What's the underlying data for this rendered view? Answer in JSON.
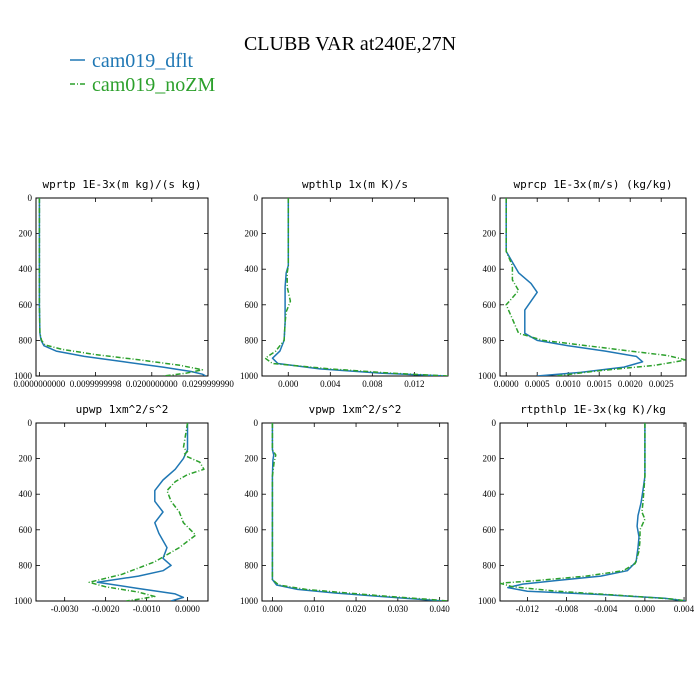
{
  "figure_title": "CLUBB VAR at240E,27N",
  "legend": [
    {
      "label": "cam019_dflt",
      "color": "#1f77b4",
      "dash": "solid"
    },
    {
      "label": "cam019_noZM",
      "color": "#2ca02c",
      "dash": "dashdot"
    }
  ],
  "chart_data": [
    {
      "type": "line",
      "title": "wprtp  1E-3x(m kg)/(s kg)",
      "xlim": [
        -0.0006,
        0.03
      ],
      "ylim": [
        1000,
        0
      ],
      "xticks": [
        0.0,
        0.0099999998,
        0.02,
        0.029999999
      ],
      "xtick_labels": [
        "0.0000000000",
        "0.0099999998",
        "0.0200000000",
        "0.0299999990"
      ],
      "yticks": [
        0,
        200,
        400,
        600,
        800,
        1000
      ],
      "ytick_labels": [
        "0",
        "200",
        "400",
        "600",
        "800",
        "1000"
      ],
      "series": [
        {
          "name": "cam019_dflt",
          "points": [
            [
              0.0,
              0
            ],
            [
              0.0,
              300
            ],
            [
              0.0,
              600
            ],
            [
              0.0001,
              760
            ],
            [
              0.0003,
              800
            ],
            [
              0.0008,
              830
            ],
            [
              0.003,
              860
            ],
            [
              0.008,
              890
            ],
            [
              0.015,
              920
            ],
            [
              0.022,
              950
            ],
            [
              0.027,
              975
            ],
            [
              0.029,
              990
            ],
            [
              0.0296,
              1000
            ]
          ]
        },
        {
          "name": "cam019_noZM",
          "points": [
            [
              0.0,
              0
            ],
            [
              0.0,
              300
            ],
            [
              0.0,
              600
            ],
            [
              0.0001,
              760
            ],
            [
              0.0004,
              800
            ],
            [
              0.001,
              825
            ],
            [
              0.004,
              850
            ],
            [
              0.01,
              880
            ],
            [
              0.018,
              910
            ],
            [
              0.025,
              940
            ],
            [
              0.029,
              965
            ],
            [
              0.026,
              985
            ],
            [
              0.022,
              1000
            ]
          ]
        }
      ]
    },
    {
      "type": "line",
      "title": "wpthlp  1x(m K)/s",
      "xlim": [
        -0.0025,
        0.0152
      ],
      "ylim": [
        1000,
        0
      ],
      "xticks": [
        0.0,
        0.004,
        0.008,
        0.012
      ],
      "xtick_labels": [
        "0.000",
        "0.004",
        "0.008",
        "0.012"
      ],
      "yticks": [
        0,
        200,
        400,
        600,
        800,
        1000
      ],
      "ytick_labels": [
        "0",
        "200",
        "400",
        "600",
        "800",
        "1000"
      ],
      "series": [
        {
          "name": "cam019_dflt",
          "points": [
            [
              0.0,
              0
            ],
            [
              0.0,
              200
            ],
            [
              0.0,
              380
            ],
            [
              -0.0002,
              420
            ],
            [
              -0.0003,
              500
            ],
            [
              -0.0003,
              600
            ],
            [
              -0.0003,
              700
            ],
            [
              -0.0004,
              800
            ],
            [
              -0.0008,
              860
            ],
            [
              -0.0015,
              900
            ],
            [
              -0.001,
              930
            ],
            [
              0.003,
              960
            ],
            [
              0.009,
              985
            ],
            [
              0.015,
              1000
            ]
          ]
        },
        {
          "name": "cam019_noZM",
          "points": [
            [
              0.0,
              0
            ],
            [
              0.0,
              200
            ],
            [
              0.0,
              380
            ],
            [
              -0.0001,
              420
            ],
            [
              -0.0001,
              500
            ],
            [
              0.0002,
              580
            ],
            [
              -0.0002,
              640
            ],
            [
              -0.0003,
              700
            ],
            [
              -0.0004,
              800
            ],
            [
              -0.0012,
              860
            ],
            [
              -0.0022,
              900
            ],
            [
              -0.0015,
              930
            ],
            [
              0.004,
              960
            ],
            [
              0.01,
              985
            ],
            [
              0.0152,
              1000
            ]
          ]
        }
      ]
    },
    {
      "type": "line",
      "title": "wprcp  1E-3x(m/s) (kg/kg)",
      "xlim": [
        -0.0001,
        0.0029
      ],
      "ylim": [
        1000,
        0
      ],
      "xticks": [
        0.0,
        0.0005,
        0.001,
        0.0015,
        0.002,
        0.0025
      ],
      "xtick_labels": [
        "0.0000",
        "0.0005",
        "0.0010",
        "0.0015",
        "0.0020",
        "0.0025"
      ],
      "yticks": [
        0,
        200,
        400,
        600,
        800,
        1000
      ],
      "ytick_labels": [
        "0",
        "200",
        "400",
        "600",
        "800",
        "1000"
      ],
      "series": [
        {
          "name": "cam019_dflt",
          "points": [
            [
              0.0,
              0
            ],
            [
              0.0,
              300
            ],
            [
              0.0001,
              360
            ],
            [
              0.0002,
              420
            ],
            [
              0.0004,
              480
            ],
            [
              0.0005,
              530
            ],
            [
              0.0004,
              580
            ],
            [
              0.0003,
              630
            ],
            [
              0.0003,
              700
            ],
            [
              0.0003,
              760
            ],
            [
              0.0005,
              800
            ],
            [
              0.001,
              830
            ],
            [
              0.0016,
              860
            ],
            [
              0.0021,
              890
            ],
            [
              0.0022,
              920
            ],
            [
              0.0019,
              950
            ],
            [
              0.0012,
              980
            ],
            [
              0.0005,
              1000
            ]
          ]
        },
        {
          "name": "cam019_noZM",
          "points": [
            [
              0.0,
              0
            ],
            [
              0.0,
              300
            ],
            [
              0.0001,
              380
            ],
            [
              0.0001,
              460
            ],
            [
              0.0002,
              520
            ],
            [
              0.0,
              600
            ],
            [
              0.0001,
              680
            ],
            [
              0.0002,
              760
            ],
            [
              0.0006,
              800
            ],
            [
              0.0013,
              830
            ],
            [
              0.002,
              860
            ],
            [
              0.0026,
              885
            ],
            [
              0.0029,
              910
            ],
            [
              0.0024,
              940
            ],
            [
              0.0015,
              970
            ],
            [
              0.0008,
              1000
            ]
          ]
        }
      ]
    },
    {
      "type": "line",
      "title": "upwp  1xm^2/s^2",
      "xlim": [
        -0.0037,
        0.0005
      ],
      "ylim": [
        1000,
        0
      ],
      "xticks": [
        -0.003,
        -0.002,
        -0.001,
        0.0
      ],
      "xtick_labels": [
        "-0.0030",
        "-0.0020",
        "-0.0010",
        "0.0000"
      ],
      "yticks": [
        0,
        200,
        400,
        600,
        800,
        1000
      ],
      "ytick_labels": [
        "0",
        "200",
        "400",
        "600",
        "800",
        "1000"
      ],
      "series": [
        {
          "name": "cam019_dflt",
          "points": [
            [
              0.0,
              0
            ],
            [
              0.0,
              150
            ],
            [
              -0.0001,
              200
            ],
            [
              -0.0003,
              260
            ],
            [
              -0.0006,
              320
            ],
            [
              -0.0008,
              380
            ],
            [
              -0.0008,
              440
            ],
            [
              -0.0006,
              500
            ],
            [
              -0.0008,
              560
            ],
            [
              -0.0007,
              620
            ],
            [
              -0.0005,
              700
            ],
            [
              -0.0006,
              760
            ],
            [
              -0.0004,
              800
            ],
            [
              -0.0006,
              830
            ],
            [
              -0.0012,
              860
            ],
            [
              -0.0022,
              895
            ],
            [
              -0.0012,
              930
            ],
            [
              -0.0003,
              960
            ],
            [
              -0.0001,
              980
            ],
            [
              -0.0004,
              1000
            ]
          ]
        },
        {
          "name": "cam019_noZM",
          "points": [
            [
              0.0,
              0
            ],
            [
              -0.0001,
              140
            ],
            [
              0.0,
              160
            ],
            [
              -0.0001,
              180
            ],
            [
              0.0003,
              220
            ],
            [
              0.0004,
              260
            ],
            [
              0.0,
              290
            ],
            [
              -0.0003,
              330
            ],
            [
              -0.0005,
              380
            ],
            [
              -0.0004,
              440
            ],
            [
              -0.0002,
              500
            ],
            [
              -0.0001,
              560
            ],
            [
              0.0002,
              630
            ],
            [
              -0.0002,
              700
            ],
            [
              -0.0008,
              780
            ],
            [
              -0.0016,
              850
            ],
            [
              -0.0024,
              895
            ],
            [
              -0.002,
              920
            ],
            [
              -0.0012,
              950
            ],
            [
              -0.0008,
              975
            ],
            [
              -0.0012,
              990
            ],
            [
              -0.0015,
              1000
            ]
          ]
        }
      ]
    },
    {
      "type": "line",
      "title": "vpwp  1xm^2/s^2",
      "xlim": [
        -0.0025,
        0.042
      ],
      "ylim": [
        1000,
        0
      ],
      "xticks": [
        0.0,
        0.01,
        0.02,
        0.03,
        0.04
      ],
      "xtick_labels": [
        "0.000",
        "0.010",
        "0.020",
        "0.030",
        "0.040"
      ],
      "yticks": [
        0,
        200,
        400,
        600,
        800,
        1000
      ],
      "ytick_labels": [
        "0",
        "200",
        "400",
        "600",
        "800",
        "1000"
      ],
      "series": [
        {
          "name": "cam019_dflt",
          "points": [
            [
              0.0,
              0
            ],
            [
              0.0,
              150
            ],
            [
              0.0003,
              180
            ],
            [
              0.0001,
              210
            ],
            [
              0.0,
              300
            ],
            [
              0.0,
              600
            ],
            [
              0.0,
              800
            ],
            [
              0.0,
              880
            ],
            [
              0.001,
              910
            ],
            [
              0.006,
              935
            ],
            [
              0.015,
              955
            ],
            [
              0.026,
              975
            ],
            [
              0.035,
              990
            ],
            [
              0.041,
              1000
            ]
          ]
        },
        {
          "name": "cam019_noZM",
          "points": [
            [
              0.0,
              0
            ],
            [
              0.0,
              150
            ],
            [
              0.0008,
              180
            ],
            [
              0.0004,
              220
            ],
            [
              0.0,
              300
            ],
            [
              0.0,
              600
            ],
            [
              0.0,
              800
            ],
            [
              0.0,
              880
            ],
            [
              0.0015,
              910
            ],
            [
              0.008,
              935
            ],
            [
              0.018,
              955
            ],
            [
              0.028,
              975
            ],
            [
              0.037,
              990
            ],
            [
              0.042,
              1000
            ]
          ]
        }
      ]
    },
    {
      "type": "line",
      "title": "rtpthlp  1E-3x(kg K)/kg",
      "xlim": [
        -0.0148,
        0.0042
      ],
      "ylim": [
        1000,
        0
      ],
      "xticks": [
        -0.012,
        -0.008,
        -0.004,
        0.0,
        0.004
      ],
      "xtick_labels": [
        "-0.012",
        "-0.008",
        "-0.004",
        "0.000",
        "0.004"
      ],
      "yticks": [
        0,
        200,
        400,
        600,
        800,
        1000
      ],
      "ytick_labels": [
        "0",
        "200",
        "400",
        "600",
        "800",
        "1000"
      ],
      "series": [
        {
          "name": "cam019_dflt",
          "points": [
            [
              0.0,
              0
            ],
            [
              0.0,
              300
            ],
            [
              -0.0002,
              380
            ],
            [
              -0.0004,
              450
            ],
            [
              -0.0007,
              520
            ],
            [
              -0.0008,
              580
            ],
            [
              -0.0006,
              640
            ],
            [
              -0.0007,
              700
            ],
            [
              -0.0009,
              780
            ],
            [
              -0.0018,
              830
            ],
            [
              -0.0045,
              860
            ],
            [
              -0.009,
              885
            ],
            [
              -0.0125,
              905
            ],
            [
              -0.014,
              925
            ],
            [
              -0.012,
              945
            ],
            [
              -0.004,
              965
            ],
            [
              0.002,
              985
            ],
            [
              0.0042,
              1000
            ]
          ]
        },
        {
          "name": "cam019_noZM",
          "points": [
            [
              0.0,
              0
            ],
            [
              0.0,
              300
            ],
            [
              -0.0001,
              380
            ],
            [
              -0.0002,
              450
            ],
            [
              -0.0003,
              500
            ],
            [
              0.0,
              540
            ],
            [
              -0.0005,
              600
            ],
            [
              -0.0005,
              660
            ],
            [
              -0.0006,
              720
            ],
            [
              -0.001,
              790
            ],
            [
              -0.0022,
              830
            ],
            [
              -0.006,
              860
            ],
            [
              -0.011,
              885
            ],
            [
              -0.0148,
              900
            ],
            [
              -0.0135,
              920
            ],
            [
              -0.009,
              945
            ],
            [
              -0.002,
              970
            ],
            [
              0.003,
              990
            ],
            [
              0.0042,
              1000
            ]
          ]
        }
      ]
    }
  ]
}
